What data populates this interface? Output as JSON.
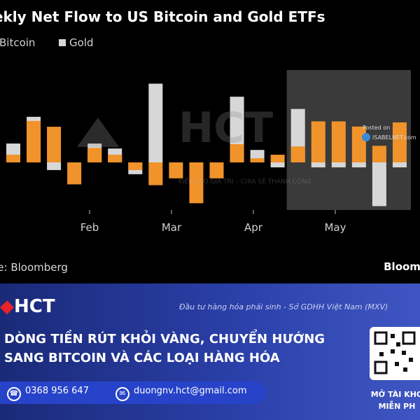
{
  "chart": {
    "title": "Weekly Net Flow to US Bitcoin and Gold ETFs",
    "legend": [
      "Bitcoin",
      "Gold"
    ],
    "source": "Source: Bloomberg",
    "brand": "Bloomberg",
    "watermark_text": "KIẾN TẠO GIÁ TRỊ – CHIA SẺ THÀNH CÔNG",
    "posted_on": "Posted on",
    "posted_site": "ISABELNET.com"
  },
  "chart_data": {
    "type": "bar",
    "categories": [
      "w1",
      "w2",
      "w3",
      "w4",
      "w5",
      "w6",
      "w7",
      "w8",
      "w9",
      "w10",
      "w11",
      "w12",
      "w13",
      "w14",
      "w15",
      "w16",
      "w17",
      "w18",
      "w19",
      "w20"
    ],
    "x_tick_labels": [
      "Feb",
      "Mar",
      "Apr",
      "May"
    ],
    "series": [
      {
        "name": "Bitcoin",
        "values": [
          0.37,
          2.0,
          1.72,
          -1.06,
          0.7,
          0.37,
          -0.37,
          -1.1,
          -0.77,
          -1.97,
          -0.77,
          0.88,
          0.2,
          0.37,
          0.77,
          1.98,
          1.98,
          1.73,
          0.8,
          1.93
        ]
      },
      {
        "name": "Gold",
        "values": [
          0.91,
          2.2,
          -0.37,
          0.0,
          0.91,
          0.67,
          -0.57,
          3.8,
          0.0,
          0.0,
          0.0,
          3.17,
          0.6,
          -0.24,
          2.58,
          -0.24,
          -0.24,
          -0.24,
          -2.11,
          -0.24
        ]
      }
    ],
    "highlight": {
      "from": "w15",
      "to": "w20"
    },
    "grid": false,
    "legend_position": "top-left"
  },
  "colors": {
    "bitcoin": "#f0932b",
    "gold": "#d7d7d7",
    "banner": "#2237a0",
    "accent": "#e8232a"
  },
  "banner": {
    "logo": "HCT",
    "tagline": "Đầu tư hàng hóa phái sinh - Sở GDHH Việt Nam (MXV)",
    "headline_line1": "DÒNG TIỀN RÚT KHỎI VÀNG, CHUYỂN HƯỚNG",
    "headline_line2": "SANG BITCOIN VÀ CÁC LOẠI HÀNG HÓA",
    "phone": "0368 956 647",
    "email": "duongnv.hct@gmail.com",
    "cta_line1": "MỞ TÀI KHO",
    "cta_line2": "MIỄN PH"
  },
  "icons": {
    "phone": "phone-icon",
    "email": "email-icon",
    "globe": "globe-icon",
    "qr": "qr-code-icon"
  }
}
